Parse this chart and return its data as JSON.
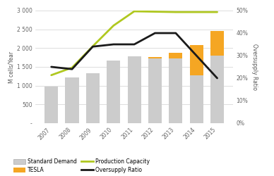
{
  "years": [
    2007,
    2008,
    2009,
    2010,
    2011,
    2012,
    2013,
    2014,
    2015
  ],
  "standard_demand": [
    980,
    1220,
    1340,
    1670,
    1780,
    1720,
    1720,
    1280,
    1800
  ],
  "tesla_demand": [
    0,
    0,
    0,
    0,
    0,
    50,
    160,
    800,
    650
  ],
  "production_capacity": [
    1280,
    1480,
    2050,
    2600,
    2980,
    2970,
    2960,
    2960,
    2960
  ],
  "oversupply_ratio": [
    25,
    24,
    34,
    35,
    35,
    40,
    40,
    30,
    20
  ],
  "bar_color_standard": "#cccccc",
  "bar_color_tesla": "#f5a623",
  "line_color_capacity": "#b0c820",
  "line_color_oversupply": "#1a1a1a",
  "ylabel_left": "M cells/Year",
  "ylabel_right": "Oversupply Ratio",
  "ylim_left": [
    0,
    3000
  ],
  "ylim_right": [
    0,
    50
  ],
  "yticks_left": [
    0,
    500,
    1000,
    1500,
    2000,
    2500,
    3000
  ],
  "ytick_labels_left": [
    "-",
    "500",
    "1 000",
    "1 500",
    "2 000",
    "2 500",
    "3 000"
  ],
  "yticks_right": [
    0,
    10,
    20,
    30,
    40,
    50
  ],
  "ytick_labels_right": [
    "0%",
    "10%",
    "20%",
    "30%",
    "40%",
    "50%"
  ],
  "bg_color": "#ffffff",
  "grid_color": "#d0d0d0"
}
